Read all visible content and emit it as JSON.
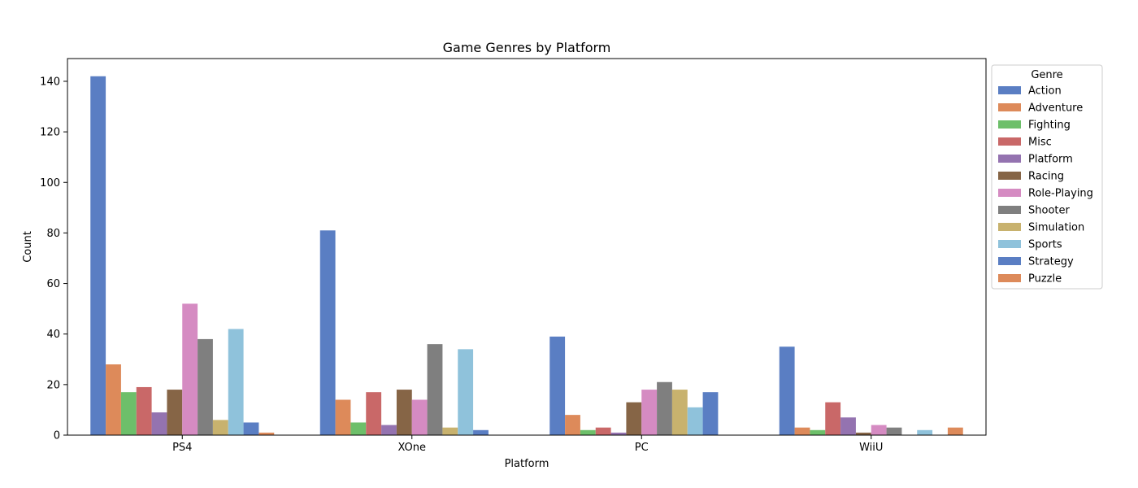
{
  "chart_data": {
    "type": "bar",
    "title": "Game Genres by Platform",
    "xlabel": "Platform",
    "ylabel": "Count",
    "ylim": [
      0,
      149
    ],
    "yticks": [
      0,
      20,
      40,
      60,
      80,
      100,
      120,
      140
    ],
    "categories": [
      "PS4",
      "XOne",
      "PC",
      "WiiU"
    ],
    "legend": {
      "title": "Genre",
      "placement": "outside-right"
    },
    "grid": false,
    "series": [
      {
        "name": "Action",
        "color": "#5a7ec3",
        "values": [
          142,
          81,
          39,
          35
        ]
      },
      {
        "name": "Adventure",
        "color": "#dd8a5a",
        "values": [
          28,
          14,
          8,
          3
        ]
      },
      {
        "name": "Fighting",
        "color": "#6dbf6a",
        "values": [
          17,
          5,
          2,
          2
        ]
      },
      {
        "name": "Misc",
        "color": "#c96868",
        "values": [
          19,
          17,
          3,
          13
        ]
      },
      {
        "name": "Platform",
        "color": "#9473b0",
        "values": [
          9,
          4,
          1,
          7
        ]
      },
      {
        "name": "Racing",
        "color": "#866546",
        "values": [
          18,
          18,
          13,
          1
        ]
      },
      {
        "name": "Role-Playing",
        "color": "#d58bc2",
        "values": [
          52,
          14,
          18,
          4
        ]
      },
      {
        "name": "Shooter",
        "color": "#7f7f7f",
        "values": [
          38,
          36,
          21,
          3
        ]
      },
      {
        "name": "Simulation",
        "color": "#c8b26e",
        "values": [
          6,
          3,
          18,
          0
        ]
      },
      {
        "name": "Sports",
        "color": "#8fc2db",
        "values": [
          42,
          34,
          11,
          2
        ]
      },
      {
        "name": "Strategy",
        "color": "#5a7ec3",
        "values": [
          5,
          2,
          17,
          0
        ]
      },
      {
        "name": "Puzzle",
        "color": "#dd8a5a",
        "values": [
          1,
          0,
          0,
          3
        ]
      }
    ]
  }
}
